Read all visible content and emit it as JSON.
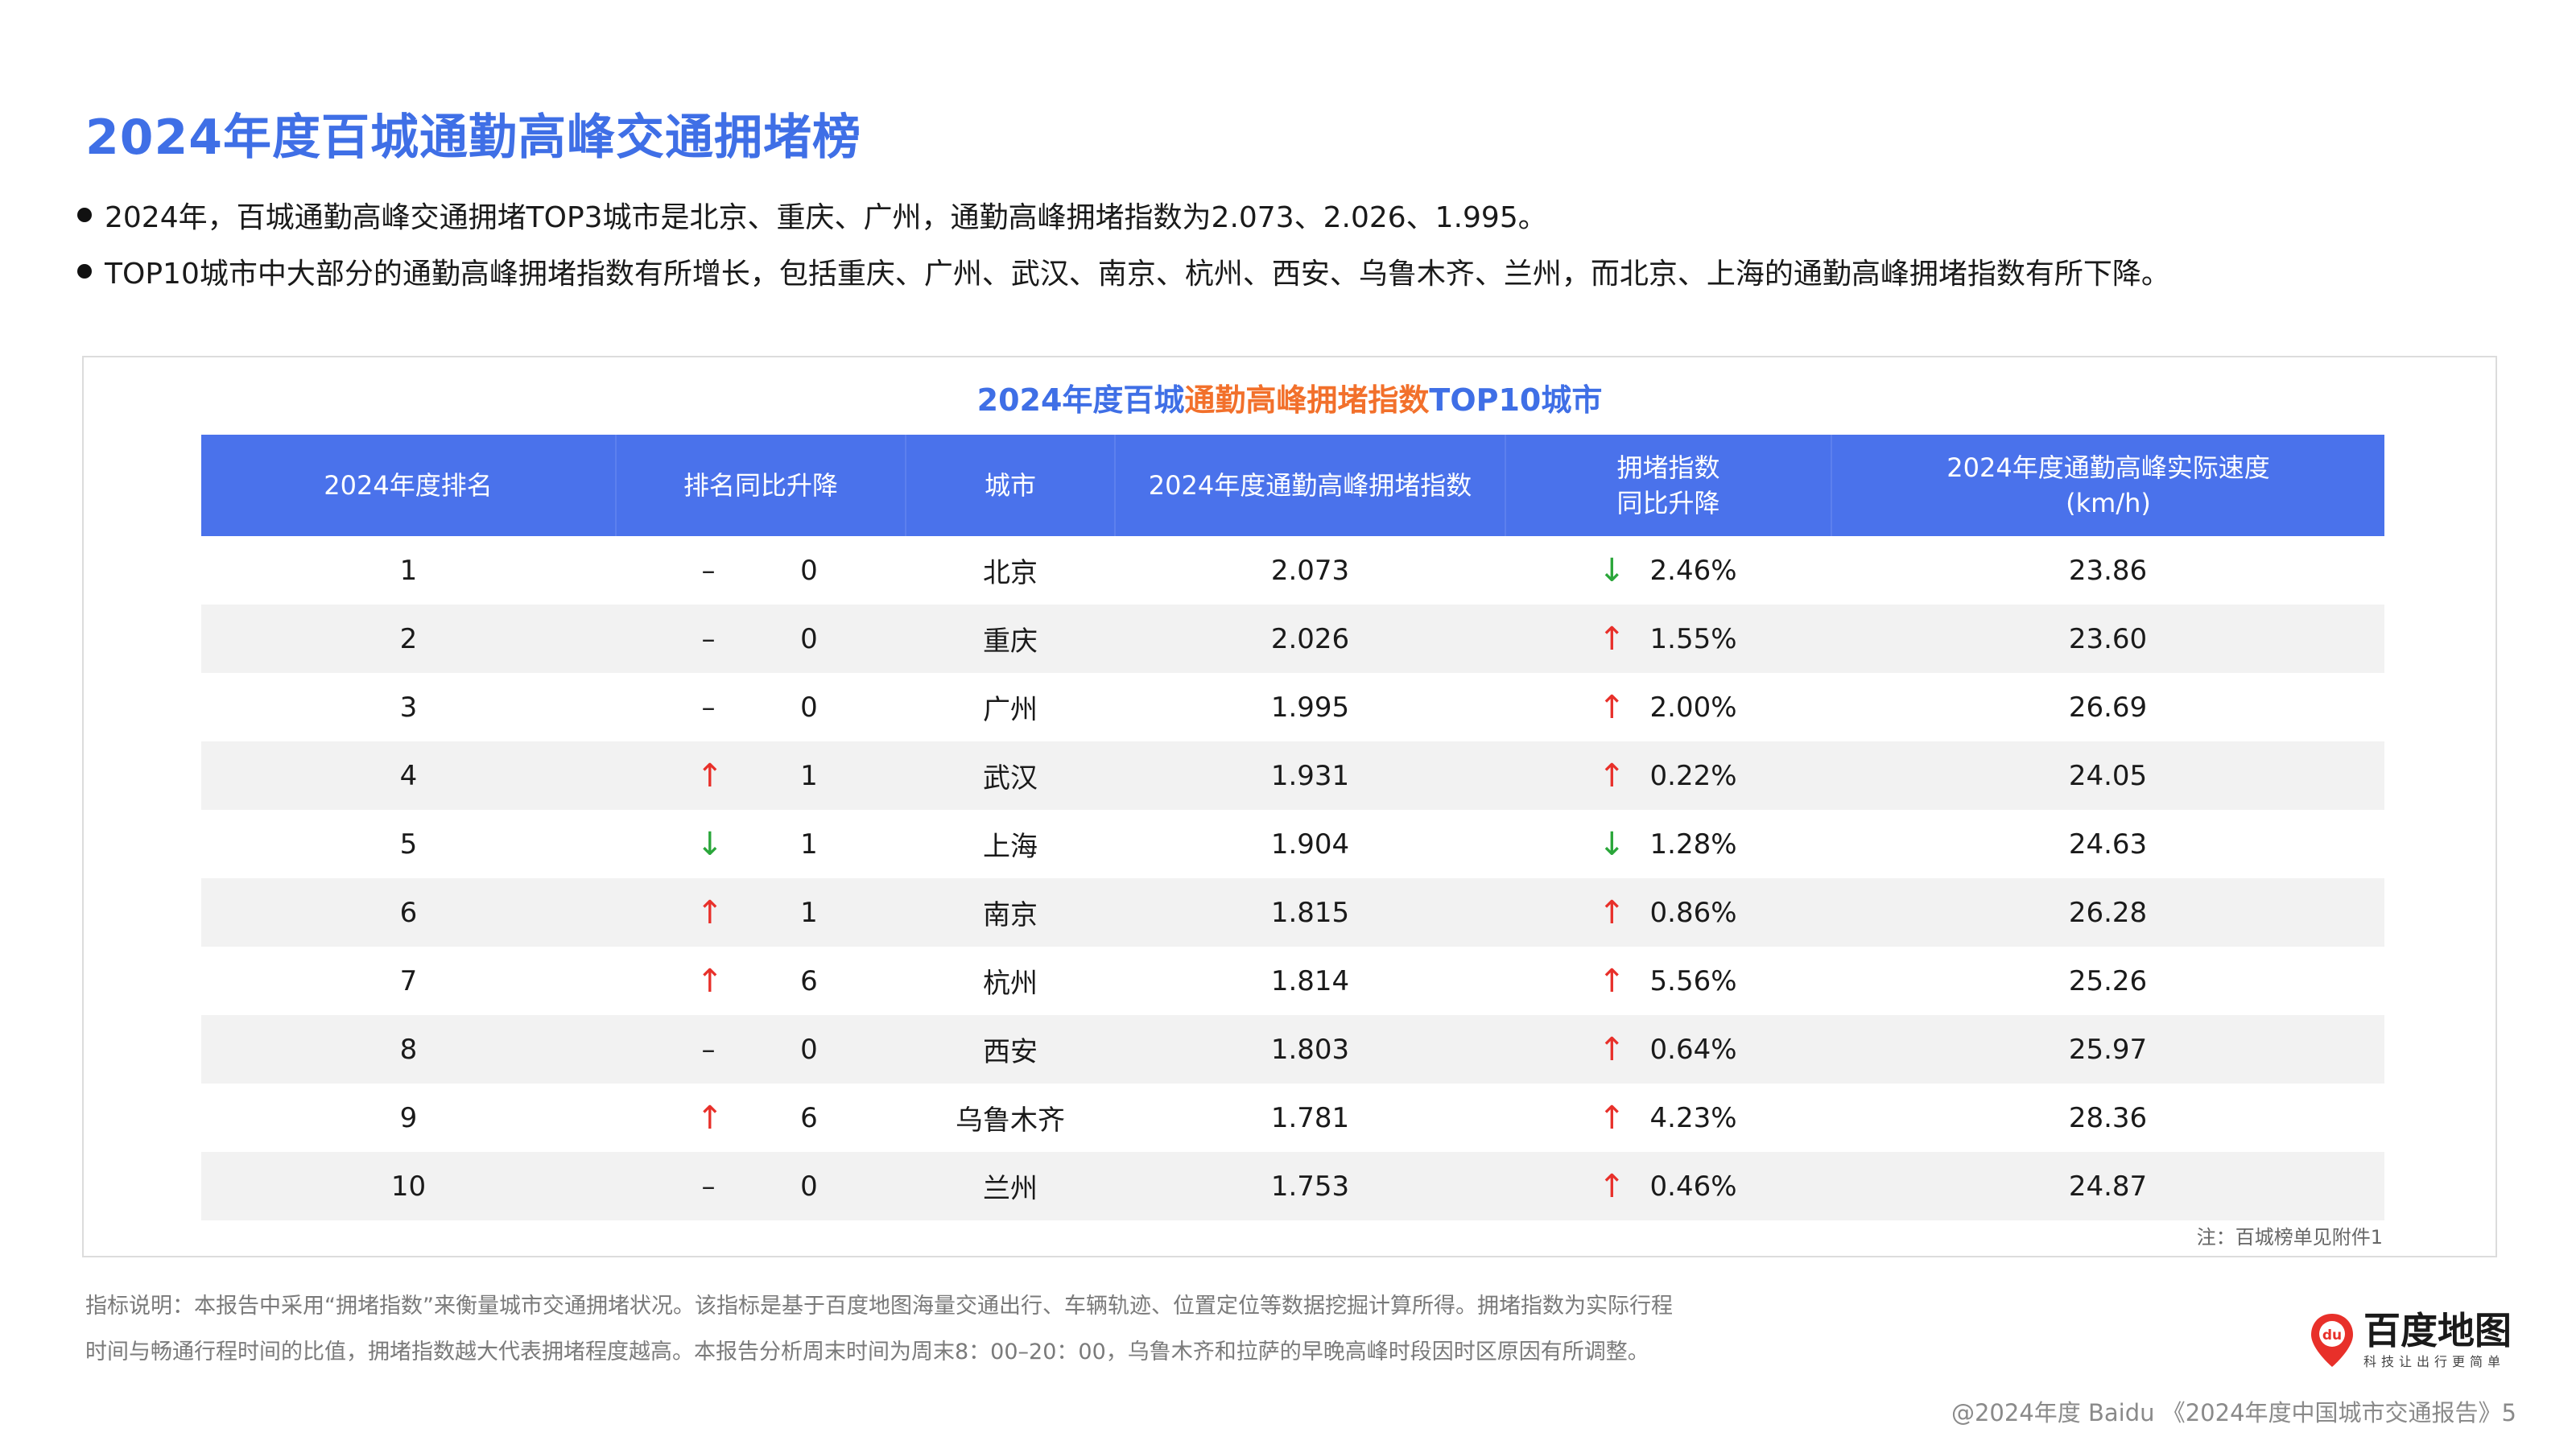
{
  "page": {
    "title": "2024年度百城通勤高峰交通拥堵榜",
    "bullets": [
      "2024年，百城通勤高峰交通拥堵TOP3城市是北京、重庆、广州，通勤高峰拥堵指数为2.073、2.026、1.995。",
      "TOP10城市中大部分的通勤高峰拥堵指数有所增长，包括重庆、广州、武汉、南京、杭州、西安、乌鲁木齐、兰州，而北京、上海的通勤高峰拥堵指数有所下降。"
    ]
  },
  "table": {
    "title_part1": "2024年度百城",
    "title_highlight": "通勤高峰拥堵指数",
    "title_part2": "TOP10城市",
    "headers": [
      "2024年度排名",
      "排名同比升降",
      "城市",
      "2024年度通勤高峰拥堵指数",
      "拥堵指数\n同比升降",
      "2024年度通勤高峰实际速度\n(km/h)"
    ],
    "rows": [
      {
        "rank": "1",
        "rank_change_dir": "flat",
        "rank_change": "0",
        "city": "北京",
        "index": "2.073",
        "yoy_dir": "down",
        "yoy": "2.46%",
        "speed": "23.86"
      },
      {
        "rank": "2",
        "rank_change_dir": "flat",
        "rank_change": "0",
        "city": "重庆",
        "index": "2.026",
        "yoy_dir": "up",
        "yoy": "1.55%",
        "speed": "23.60"
      },
      {
        "rank": "3",
        "rank_change_dir": "flat",
        "rank_change": "0",
        "city": "广州",
        "index": "1.995",
        "yoy_dir": "up",
        "yoy": "2.00%",
        "speed": "26.69"
      },
      {
        "rank": "4",
        "rank_change_dir": "up",
        "rank_change": "1",
        "city": "武汉",
        "index": "1.931",
        "yoy_dir": "up",
        "yoy": "0.22%",
        "speed": "24.05"
      },
      {
        "rank": "5",
        "rank_change_dir": "down",
        "rank_change": "1",
        "city": "上海",
        "index": "1.904",
        "yoy_dir": "down",
        "yoy": "1.28%",
        "speed": "24.63"
      },
      {
        "rank": "6",
        "rank_change_dir": "up",
        "rank_change": "1",
        "city": "南京",
        "index": "1.815",
        "yoy_dir": "up",
        "yoy": "0.86%",
        "speed": "26.28"
      },
      {
        "rank": "7",
        "rank_change_dir": "up",
        "rank_change": "6",
        "city": "杭州",
        "index": "1.814",
        "yoy_dir": "up",
        "yoy": "5.56%",
        "speed": "25.26"
      },
      {
        "rank": "8",
        "rank_change_dir": "flat",
        "rank_change": "0",
        "city": "西安",
        "index": "1.803",
        "yoy_dir": "up",
        "yoy": "0.64%",
        "speed": "25.97"
      },
      {
        "rank": "9",
        "rank_change_dir": "up",
        "rank_change": "6",
        "city": "乌鲁木齐",
        "index": "1.781",
        "yoy_dir": "up",
        "yoy": "4.23%",
        "speed": "28.36"
      },
      {
        "rank": "10",
        "rank_change_dir": "flat",
        "rank_change": "0",
        "city": "兰州",
        "index": "1.753",
        "yoy_dir": "up",
        "yoy": "0.46%",
        "speed": "24.87"
      }
    ],
    "symbols": {
      "up": "↑",
      "down": "↓",
      "flat": "–"
    },
    "note": "注：百城榜单见附件1"
  },
  "colors": {
    "accent_blue": "#3f6fe6",
    "header_blue": "#4a72eb",
    "highlight_orange": "#f2702b",
    "up_red": "#e8302a",
    "down_green": "#2aa63a"
  },
  "footer": {
    "footnote": "指标说明：本报告中采用“拥堵指数”来衡量城市交通拥堵状况。该指标是基于百度地图海量交通出行、车辆轨迹、位置定位等数据挖掘计算所得。拥堵指数为实际行程时间与畅通行程时间的比值，拥堵指数越大代表拥堵程度越高。本报告分析周末时间为周末8：00–20：00，乌鲁木齐和拉萨的早晚高峰时段因时区原因有所调整。",
    "logo_name": "百度地图",
    "logo_slogan": "科技让出行更简单",
    "logo_icon_text": "du",
    "copyright": "@2024年度 Baidu 《2024年度中国城市交通报告》5"
  }
}
